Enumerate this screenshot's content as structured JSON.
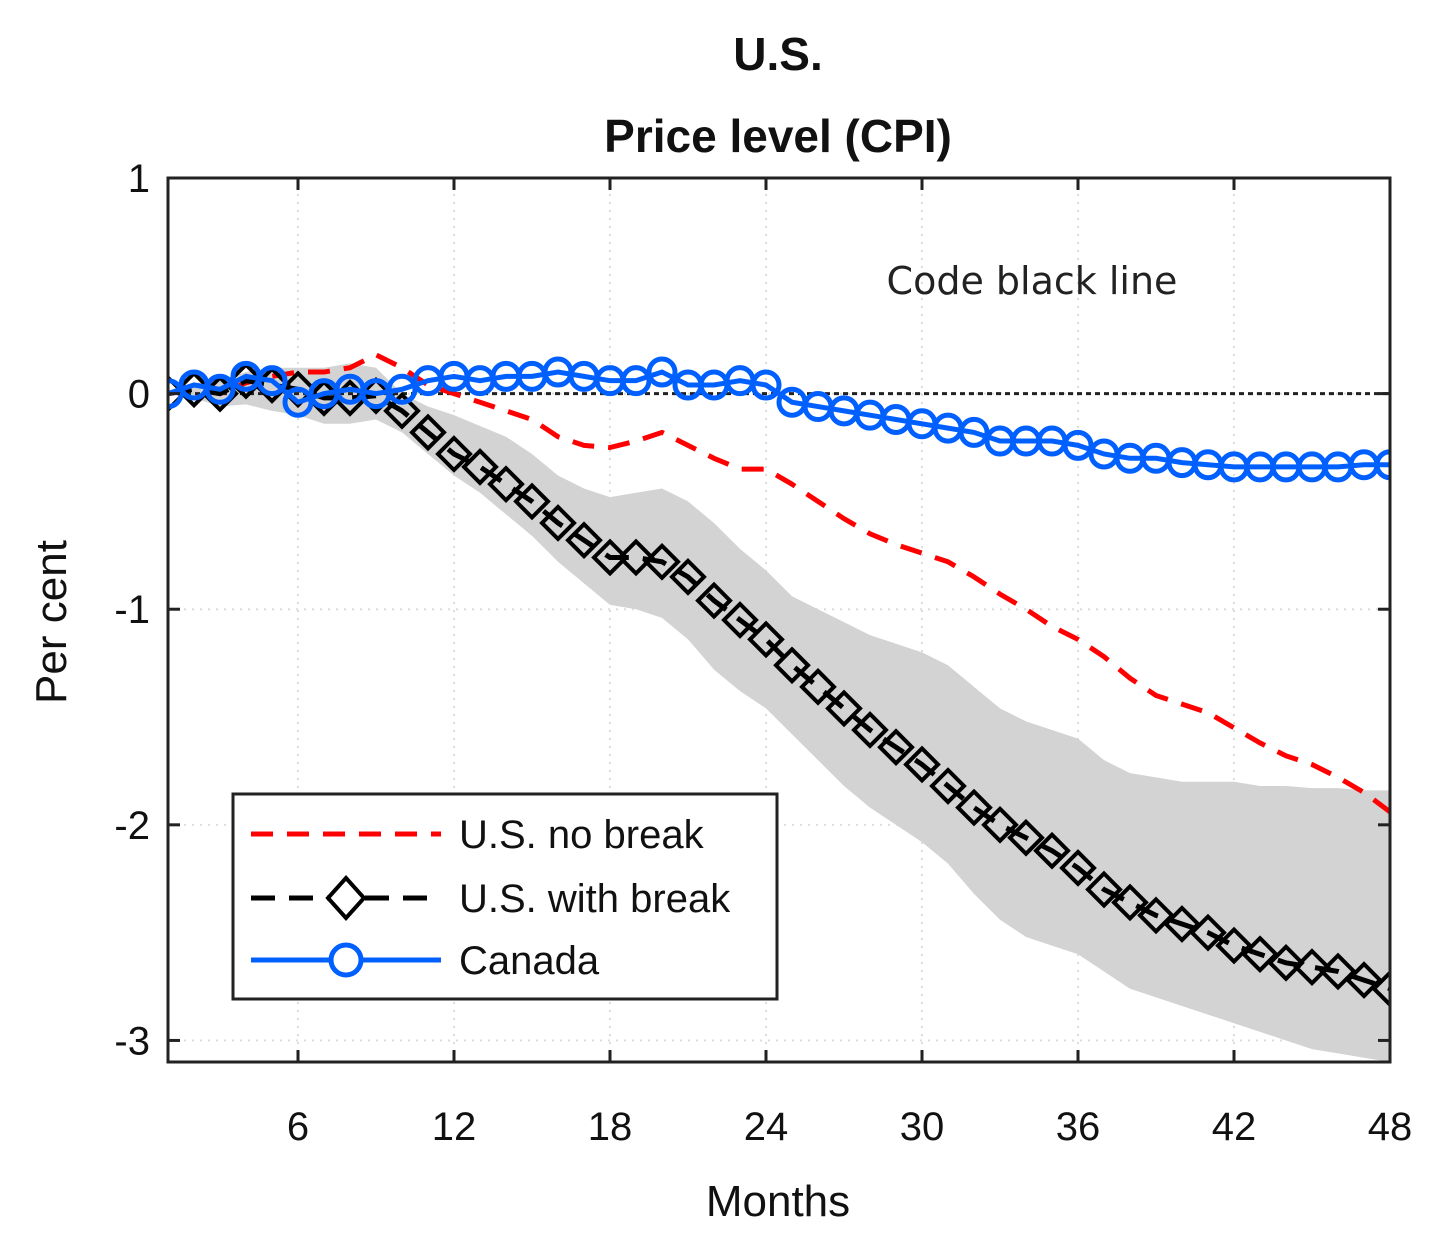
{
  "chart_data": {
    "type": "line",
    "title": [
      "U.S.",
      "Price level (CPI)"
    ],
    "xlabel": "Months",
    "ylabel": "Per cent",
    "xlim": [
      1,
      48
    ],
    "ylim": [
      -3.1,
      1
    ],
    "xticks": [
      6,
      12,
      18,
      24,
      30,
      36,
      42,
      48
    ],
    "yticks": [
      1,
      0,
      -1,
      -2,
      -3
    ],
    "ytick_labels": [
      "1",
      "0",
      "-1",
      "-2",
      "-3"
    ],
    "grid": true,
    "zero_line": true,
    "annotation": "Code black line",
    "legend_position": "bottom-left",
    "x": [
      1,
      2,
      3,
      4,
      5,
      6,
      7,
      8,
      9,
      10,
      11,
      12,
      13,
      14,
      15,
      16,
      17,
      18,
      19,
      20,
      21,
      22,
      23,
      24,
      25,
      26,
      27,
      28,
      29,
      30,
      31,
      32,
      33,
      34,
      35,
      36,
      37,
      38,
      39,
      40,
      41,
      42,
      43,
      44,
      45,
      46,
      47,
      48
    ],
    "series": [
      {
        "name": "U.S. no break",
        "color": "#ff0000",
        "style": "dashed",
        "values": [
          0,
          0.02,
          0,
          0.05,
          0.08,
          0.1,
          0.1,
          0.12,
          0.18,
          0.12,
          0.04,
          0,
          -0.04,
          -0.08,
          -0.12,
          -0.2,
          -0.24,
          -0.25,
          -0.22,
          -0.18,
          -0.24,
          -0.3,
          -0.35,
          -0.35,
          -0.42,
          -0.5,
          -0.58,
          -0.65,
          -0.7,
          -0.74,
          -0.78,
          -0.85,
          -0.93,
          -1.0,
          -1.08,
          -1.14,
          -1.22,
          -1.32,
          -1.4,
          -1.44,
          -1.48,
          -1.55,
          -1.62,
          -1.68,
          -1.72,
          -1.78,
          -1.85,
          -1.94
        ]
      },
      {
        "name": "U.S. with break",
        "color": "#000000",
        "style": "dashed-diamond",
        "values": [
          0,
          0.02,
          0,
          0.06,
          0.04,
          0.02,
          -0.02,
          -0.02,
          -0.01,
          -0.08,
          -0.18,
          -0.28,
          -0.34,
          -0.42,
          -0.5,
          -0.6,
          -0.68,
          -0.76,
          -0.76,
          -0.78,
          -0.85,
          -0.96,
          -1.05,
          -1.14,
          -1.26,
          -1.36,
          -1.46,
          -1.56,
          -1.64,
          -1.72,
          -1.82,
          -1.92,
          -2.0,
          -2.06,
          -2.12,
          -2.2,
          -2.3,
          -2.36,
          -2.42,
          -2.46,
          -2.5,
          -2.56,
          -2.6,
          -2.64,
          -2.66,
          -2.68,
          -2.72,
          -2.76
        ]
      },
      {
        "name": "Canada",
        "color": "#0060ff",
        "style": "solid-circle",
        "values": [
          0,
          0.04,
          0.02,
          0.08,
          0.06,
          -0.04,
          0.0,
          0.02,
          0.0,
          0.02,
          0.06,
          0.08,
          0.06,
          0.08,
          0.08,
          0.1,
          0.08,
          0.06,
          0.06,
          0.1,
          0.04,
          0.04,
          0.06,
          0.04,
          -0.04,
          -0.06,
          -0.08,
          -0.1,
          -0.12,
          -0.14,
          -0.16,
          -0.18,
          -0.22,
          -0.22,
          -0.22,
          -0.24,
          -0.28,
          -0.3,
          -0.3,
          -0.32,
          -0.33,
          -0.34,
          -0.34,
          -0.34,
          -0.34,
          -0.34,
          -0.33,
          -0.33
        ]
      }
    ],
    "band": {
      "color": "#d3d3d3",
      "upper": [
        0,
        0.05,
        0.06,
        0.1,
        0.12,
        0.12,
        0.12,
        0.14,
        0.12,
        0.0,
        -0.06,
        -0.1,
        -0.15,
        -0.2,
        -0.28,
        -0.38,
        -0.44,
        -0.48,
        -0.46,
        -0.44,
        -0.5,
        -0.6,
        -0.72,
        -0.82,
        -0.94,
        -1.0,
        -1.06,
        -1.12,
        -1.16,
        -1.2,
        -1.26,
        -1.36,
        -1.46,
        -1.52,
        -1.56,
        -1.6,
        -1.7,
        -1.76,
        -1.78,
        -1.8,
        -1.8,
        -1.8,
        -1.82,
        -1.82,
        -1.83,
        -1.83,
        -1.84,
        -1.84
      ],
      "lower": [
        0,
        -0.02,
        -0.06,
        -0.05,
        -0.08,
        -0.1,
        -0.14,
        -0.14,
        -0.12,
        -0.18,
        -0.28,
        -0.38,
        -0.46,
        -0.56,
        -0.66,
        -0.78,
        -0.88,
        -0.98,
        -1.0,
        -1.04,
        -1.14,
        -1.28,
        -1.38,
        -1.46,
        -1.58,
        -1.7,
        -1.82,
        -1.92,
        -2.0,
        -2.08,
        -2.18,
        -2.32,
        -2.44,
        -2.52,
        -2.56,
        -2.6,
        -2.68,
        -2.76,
        -2.8,
        -2.84,
        -2.88,
        -2.92,
        -2.96,
        -3.0,
        -3.04,
        -3.06,
        -3.08,
        -3.1
      ]
    }
  }
}
